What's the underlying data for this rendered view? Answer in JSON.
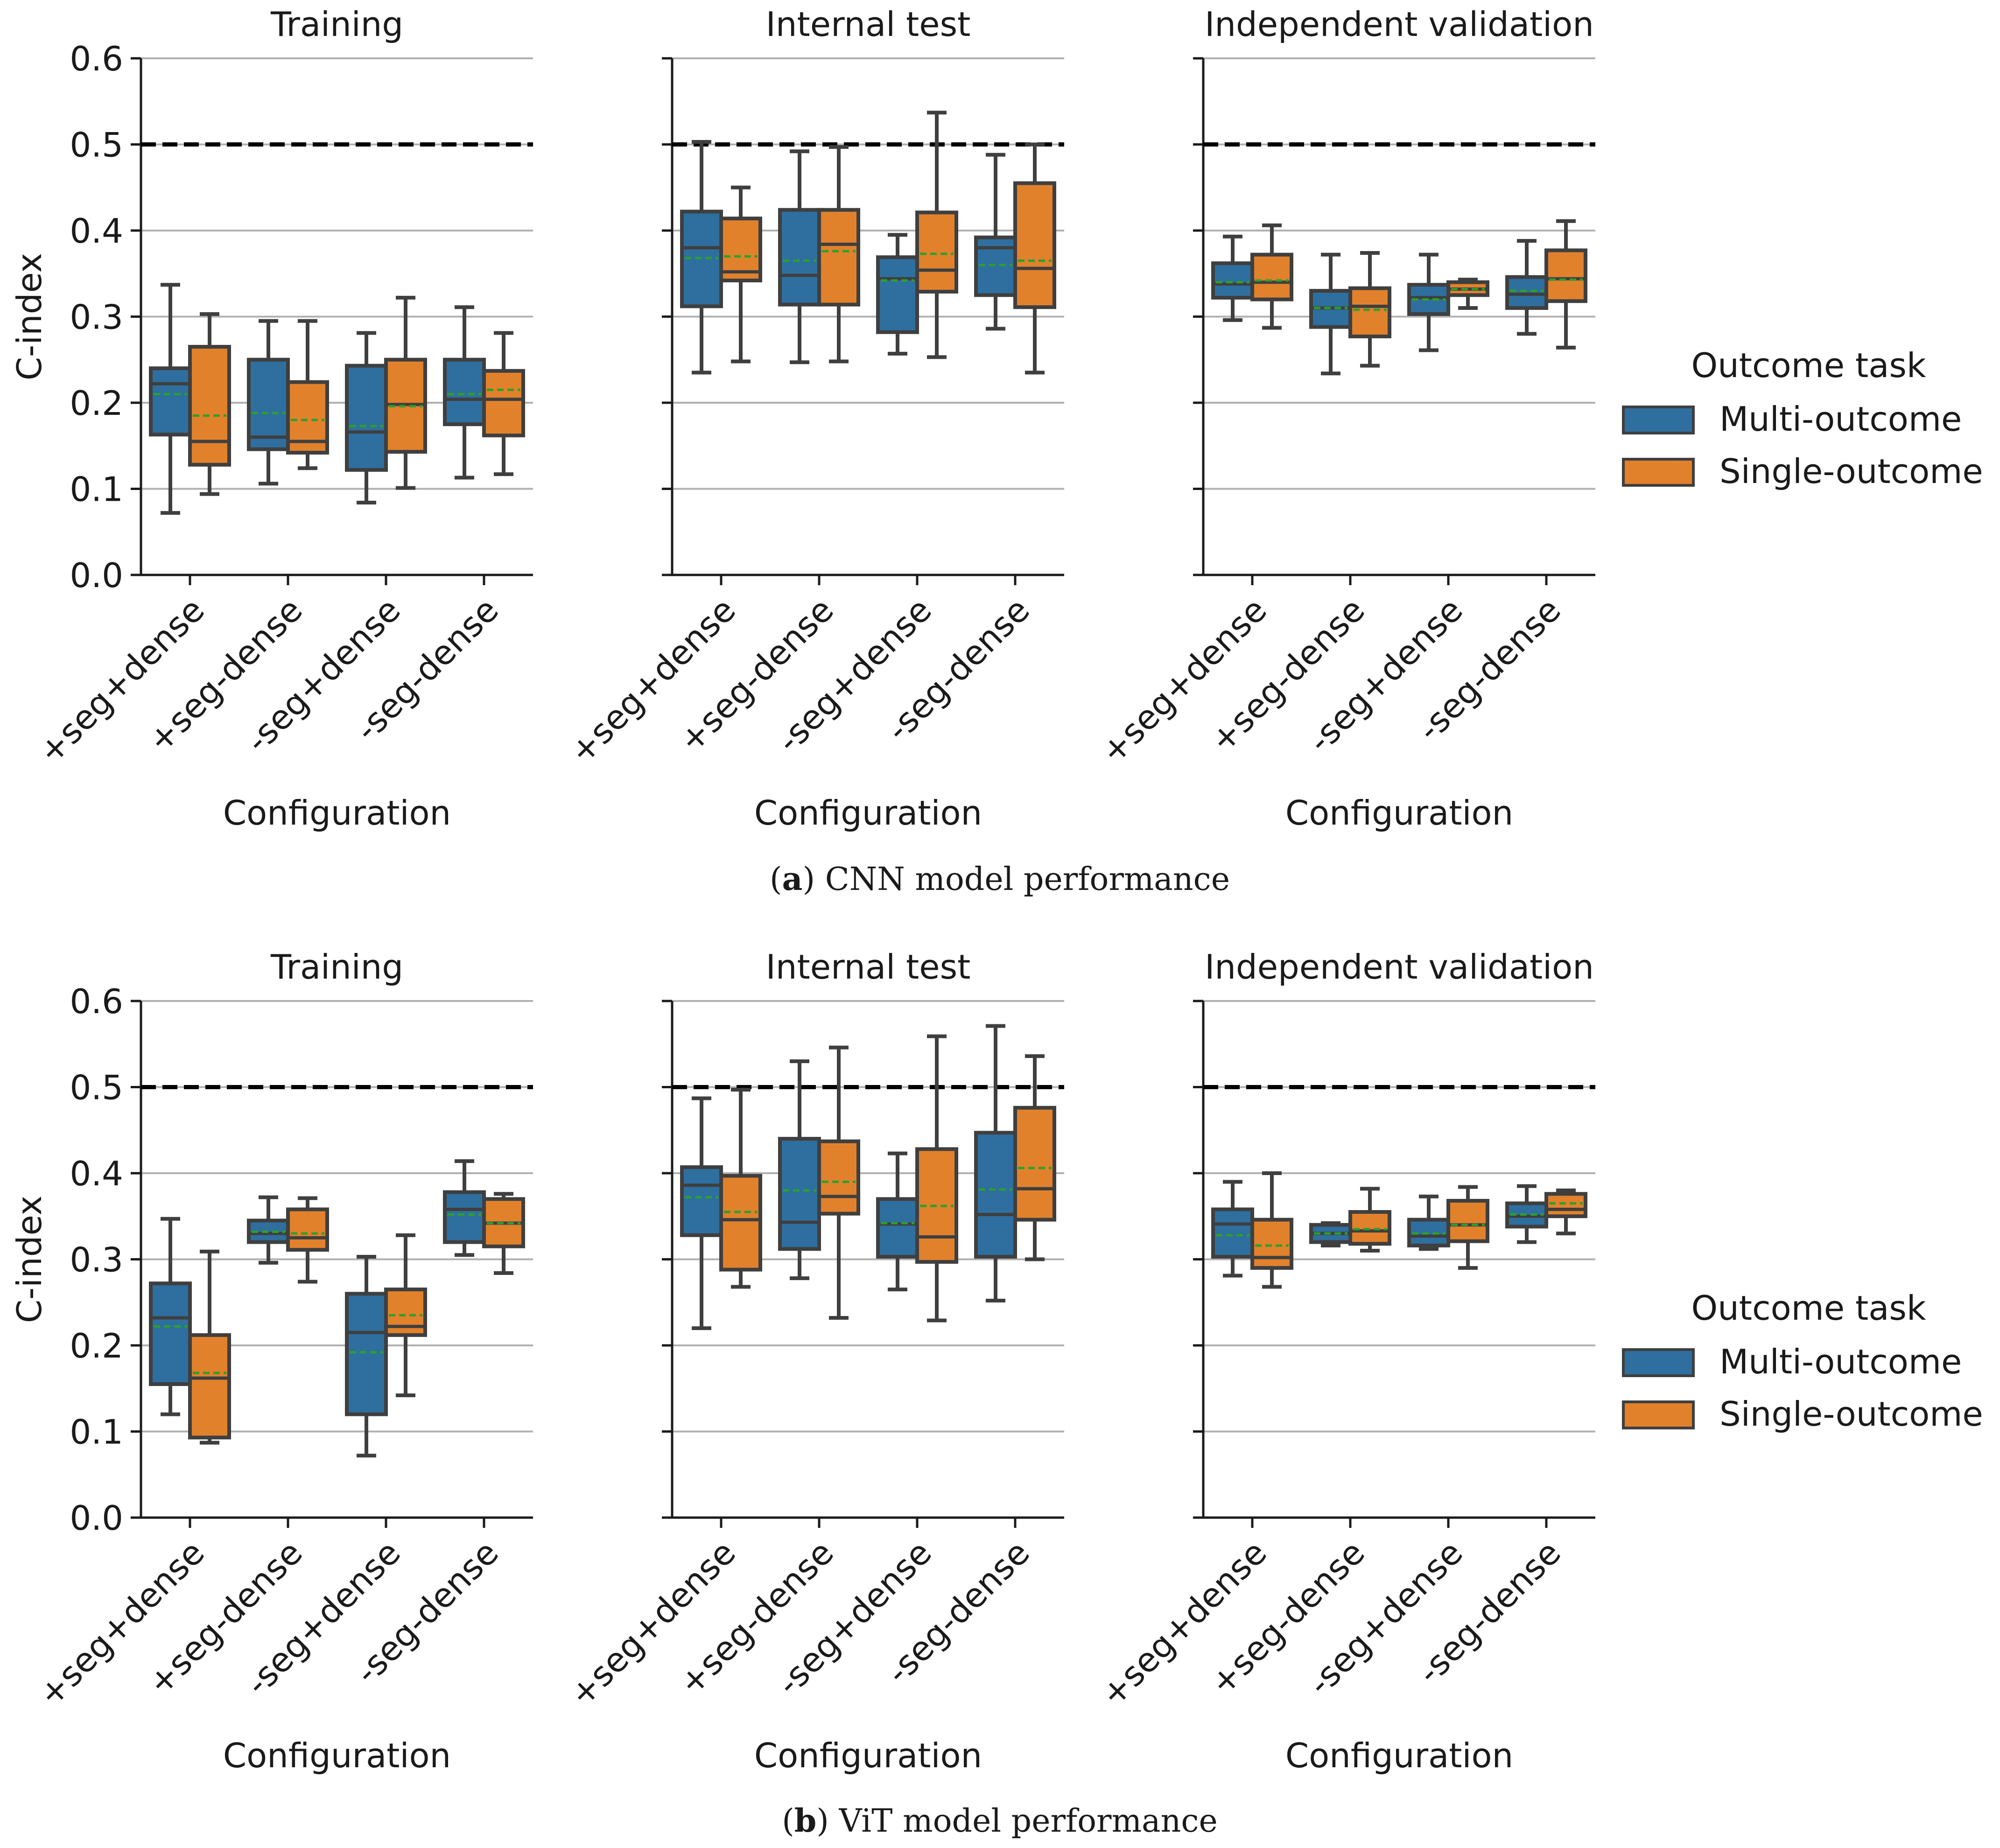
{
  "figure": {
    "caption_a_letter": "a",
    "caption_a_text": " CNN model performance",
    "caption_b_letter": "b",
    "caption_b_text": " ViT model performance"
  },
  "legend": {
    "title": "Outcome task",
    "entries": [
      "Multi-outcome",
      "Single-outcome"
    ]
  },
  "colors": {
    "multi": "#2e6f9f",
    "single": "#e1812c",
    "edge": "#3f3f3f",
    "mean": "#2ca02c",
    "ref": "#000000",
    "grid": "#b0b0b0"
  },
  "chart_data": [
    {
      "type": "box",
      "model": "CNN",
      "panels": [
        {
          "title": "Training",
          "xlabel": "Configuration",
          "ylabel": "C-index",
          "ylim": [
            0,
            0.6
          ],
          "yticks": [
            "0.0",
            "0.1",
            "0.2",
            "0.3",
            "0.4",
            "0.5",
            "0.6"
          ],
          "reference_line": 0.5,
          "categories": [
            "+seg+dense",
            "+seg-dense",
            "-seg+dense",
            "-seg-dense"
          ],
          "series": [
            {
              "name": "Multi-outcome",
              "boxes": [
                {
                  "min": 0.072,
                  "q1": 0.163,
                  "median": 0.222,
                  "q3": 0.24,
                  "max": 0.337,
                  "mean": 0.21
                },
                {
                  "min": 0.106,
                  "q1": 0.146,
                  "median": 0.16,
                  "q3": 0.25,
                  "max": 0.295,
                  "mean": 0.188
                },
                {
                  "min": 0.084,
                  "q1": 0.122,
                  "median": 0.166,
                  "q3": 0.243,
                  "max": 0.281,
                  "mean": 0.173
                },
                {
                  "min": 0.113,
                  "q1": 0.175,
                  "median": 0.204,
                  "q3": 0.25,
                  "max": 0.311,
                  "mean": 0.21
                }
              ]
            },
            {
              "name": "Single-outcome",
              "boxes": [
                {
                  "min": 0.094,
                  "q1": 0.128,
                  "median": 0.155,
                  "q3": 0.265,
                  "max": 0.303,
                  "mean": 0.185
                },
                {
                  "min": 0.124,
                  "q1": 0.142,
                  "median": 0.155,
                  "q3": 0.224,
                  "max": 0.295,
                  "mean": 0.18
                },
                {
                  "min": 0.101,
                  "q1": 0.143,
                  "median": 0.198,
                  "q3": 0.25,
                  "max": 0.322,
                  "mean": 0.196
                },
                {
                  "min": 0.117,
                  "q1": 0.162,
                  "median": 0.204,
                  "q3": 0.237,
                  "max": 0.281,
                  "mean": 0.215
                }
              ]
            }
          ]
        },
        {
          "title": "Internal test",
          "xlabel": "Configuration",
          "ylim": [
            0,
            0.6
          ],
          "reference_line": 0.5,
          "categories": [
            "+seg+dense",
            "+seg-dense",
            "-seg+dense",
            "-seg-dense"
          ],
          "series": [
            {
              "name": "Multi-outcome",
              "boxes": [
                {
                  "min": 0.235,
                  "q1": 0.312,
                  "median": 0.38,
                  "q3": 0.422,
                  "max": 0.503,
                  "mean": 0.368
                },
                {
                  "min": 0.247,
                  "q1": 0.314,
                  "median": 0.348,
                  "q3": 0.424,
                  "max": 0.492,
                  "mean": 0.365
                },
                {
                  "min": 0.257,
                  "q1": 0.282,
                  "median": 0.344,
                  "q3": 0.369,
                  "max": 0.395,
                  "mean": 0.342
                },
                {
                  "min": 0.286,
                  "q1": 0.325,
                  "median": 0.38,
                  "q3": 0.392,
                  "max": 0.488,
                  "mean": 0.36
                }
              ]
            },
            {
              "name": "Single-outcome",
              "boxes": [
                {
                  "min": 0.248,
                  "q1": 0.342,
                  "median": 0.352,
                  "q3": 0.414,
                  "max": 0.45,
                  "mean": 0.37
                },
                {
                  "min": 0.248,
                  "q1": 0.314,
                  "median": 0.384,
                  "q3": 0.424,
                  "max": 0.497,
                  "mean": 0.376
                },
                {
                  "min": 0.253,
                  "q1": 0.329,
                  "median": 0.354,
                  "q3": 0.421,
                  "max": 0.537,
                  "mean": 0.373
                },
                {
                  "min": 0.235,
                  "q1": 0.311,
                  "median": 0.356,
                  "q3": 0.455,
                  "max": 0.5,
                  "mean": 0.365
                }
              ]
            }
          ]
        },
        {
          "title": "Independent validation",
          "xlabel": "Configuration",
          "ylim": [
            0,
            0.6
          ],
          "reference_line": 0.5,
          "categories": [
            "+seg+dense",
            "+seg-dense",
            "-seg+dense",
            "-seg-dense"
          ],
          "series": [
            {
              "name": "Multi-outcome",
              "boxes": [
                {
                  "min": 0.296,
                  "q1": 0.322,
                  "median": 0.338,
                  "q3": 0.362,
                  "max": 0.393,
                  "mean": 0.34
                },
                {
                  "min": 0.234,
                  "q1": 0.288,
                  "median": 0.31,
                  "q3": 0.33,
                  "max": 0.372,
                  "mean": 0.31
                },
                {
                  "min": 0.261,
                  "q1": 0.303,
                  "median": 0.322,
                  "q3": 0.337,
                  "max": 0.372,
                  "mean": 0.32
                },
                {
                  "min": 0.28,
                  "q1": 0.31,
                  "median": 0.326,
                  "q3": 0.346,
                  "max": 0.388,
                  "mean": 0.33
                }
              ]
            },
            {
              "name": "Single-outcome",
              "boxes": [
                {
                  "min": 0.287,
                  "q1": 0.32,
                  "median": 0.34,
                  "q3": 0.372,
                  "max": 0.406,
                  "mean": 0.342
                },
                {
                  "min": 0.243,
                  "q1": 0.277,
                  "median": 0.312,
                  "q3": 0.333,
                  "max": 0.374,
                  "mean": 0.308
                },
                {
                  "min": 0.31,
                  "q1": 0.325,
                  "median": 0.332,
                  "q3": 0.34,
                  "max": 0.343,
                  "mean": 0.332
                },
                {
                  "min": 0.264,
                  "q1": 0.318,
                  "median": 0.344,
                  "q3": 0.377,
                  "max": 0.411,
                  "mean": 0.343
                }
              ]
            }
          ]
        }
      ]
    },
    {
      "type": "box",
      "model": "ViT",
      "panels": [
        {
          "title": "Training",
          "xlabel": "Configuration",
          "ylabel": "C-index",
          "ylim": [
            0,
            0.6
          ],
          "yticks": [
            "0.0",
            "0.1",
            "0.2",
            "0.3",
            "0.4",
            "0.5",
            "0.6"
          ],
          "reference_line": 0.5,
          "categories": [
            "+seg+dense",
            "+seg-dense",
            "-seg+dense",
            "-seg-dense"
          ],
          "series": [
            {
              "name": "Multi-outcome",
              "boxes": [
                {
                  "min": 0.12,
                  "q1": 0.155,
                  "median": 0.232,
                  "q3": 0.272,
                  "max": 0.347,
                  "mean": 0.222
                },
                {
                  "min": 0.296,
                  "q1": 0.32,
                  "median": 0.33,
                  "q3": 0.345,
                  "max": 0.372,
                  "mean": 0.332
                },
                {
                  "min": 0.072,
                  "q1": 0.12,
                  "median": 0.215,
                  "q3": 0.26,
                  "max": 0.303,
                  "mean": 0.192
                },
                {
                  "min": 0.305,
                  "q1": 0.32,
                  "median": 0.358,
                  "q3": 0.378,
                  "max": 0.414,
                  "mean": 0.352
                }
              ]
            },
            {
              "name": "Single-outcome",
              "boxes": [
                {
                  "min": 0.087,
                  "q1": 0.093,
                  "median": 0.162,
                  "q3": 0.212,
                  "max": 0.309,
                  "mean": 0.168
                },
                {
                  "min": 0.274,
                  "q1": 0.311,
                  "median": 0.325,
                  "q3": 0.358,
                  "max": 0.371,
                  "mean": 0.33
                },
                {
                  "min": 0.142,
                  "q1": 0.212,
                  "median": 0.222,
                  "q3": 0.265,
                  "max": 0.328,
                  "mean": 0.235
                },
                {
                  "min": 0.284,
                  "q1": 0.315,
                  "median": 0.342,
                  "q3": 0.37,
                  "max": 0.376,
                  "mean": 0.342
                }
              ]
            }
          ]
        },
        {
          "title": "Internal test",
          "xlabel": "Configuration",
          "ylim": [
            0,
            0.6
          ],
          "reference_line": 0.5,
          "categories": [
            "+seg+dense",
            "+seg-dense",
            "-seg+dense",
            "-seg-dense"
          ],
          "series": [
            {
              "name": "Multi-outcome",
              "boxes": [
                {
                  "min": 0.22,
                  "q1": 0.328,
                  "median": 0.386,
                  "q3": 0.407,
                  "max": 0.487,
                  "mean": 0.372
                },
                {
                  "min": 0.278,
                  "q1": 0.312,
                  "median": 0.343,
                  "q3": 0.44,
                  "max": 0.53,
                  "mean": 0.38
                },
                {
                  "min": 0.265,
                  "q1": 0.303,
                  "median": 0.341,
                  "q3": 0.37,
                  "max": 0.423,
                  "mean": 0.342
                },
                {
                  "min": 0.252,
                  "q1": 0.303,
                  "median": 0.352,
                  "q3": 0.447,
                  "max": 0.571,
                  "mean": 0.381
                }
              ]
            },
            {
              "name": "Single-outcome",
              "boxes": [
                {
                  "min": 0.268,
                  "q1": 0.288,
                  "median": 0.346,
                  "q3": 0.397,
                  "max": 0.497,
                  "mean": 0.355
                },
                {
                  "min": 0.232,
                  "q1": 0.353,
                  "median": 0.373,
                  "q3": 0.437,
                  "max": 0.546,
                  "mean": 0.39
                },
                {
                  "min": 0.229,
                  "q1": 0.297,
                  "median": 0.326,
                  "q3": 0.428,
                  "max": 0.559,
                  "mean": 0.362
                },
                {
                  "min": 0.3,
                  "q1": 0.346,
                  "median": 0.382,
                  "q3": 0.476,
                  "max": 0.536,
                  "mean": 0.406
                }
              ]
            }
          ]
        },
        {
          "title": "Independent validation",
          "xlabel": "Configuration",
          "ylim": [
            0,
            0.6
          ],
          "reference_line": 0.5,
          "categories": [
            "+seg+dense",
            "+seg-dense",
            "-seg+dense",
            "-seg-dense"
          ],
          "series": [
            {
              "name": "Multi-outcome",
              "boxes": [
                {
                  "min": 0.281,
                  "q1": 0.303,
                  "median": 0.341,
                  "q3": 0.358,
                  "max": 0.39,
                  "mean": 0.328
                },
                {
                  "min": 0.316,
                  "q1": 0.32,
                  "median": 0.33,
                  "q3": 0.34,
                  "max": 0.342,
                  "mean": 0.33
                },
                {
                  "min": 0.312,
                  "q1": 0.316,
                  "median": 0.327,
                  "q3": 0.346,
                  "max": 0.373,
                  "mean": 0.33
                },
                {
                  "min": 0.32,
                  "q1": 0.338,
                  "median": 0.35,
                  "q3": 0.365,
                  "max": 0.385,
                  "mean": 0.352
                }
              ]
            },
            {
              "name": "Single-outcome",
              "boxes": [
                {
                  "min": 0.268,
                  "q1": 0.29,
                  "median": 0.302,
                  "q3": 0.346,
                  "max": 0.4,
                  "mean": 0.316
                },
                {
                  "min": 0.31,
                  "q1": 0.318,
                  "median": 0.333,
                  "q3": 0.355,
                  "max": 0.382,
                  "mean": 0.335
                },
                {
                  "min": 0.29,
                  "q1": 0.321,
                  "median": 0.34,
                  "q3": 0.368,
                  "max": 0.384,
                  "mean": 0.34
                },
                {
                  "min": 0.33,
                  "q1": 0.35,
                  "median": 0.358,
                  "q3": 0.376,
                  "max": 0.38,
                  "mean": 0.365
                }
              ]
            }
          ]
        }
      ]
    }
  ]
}
